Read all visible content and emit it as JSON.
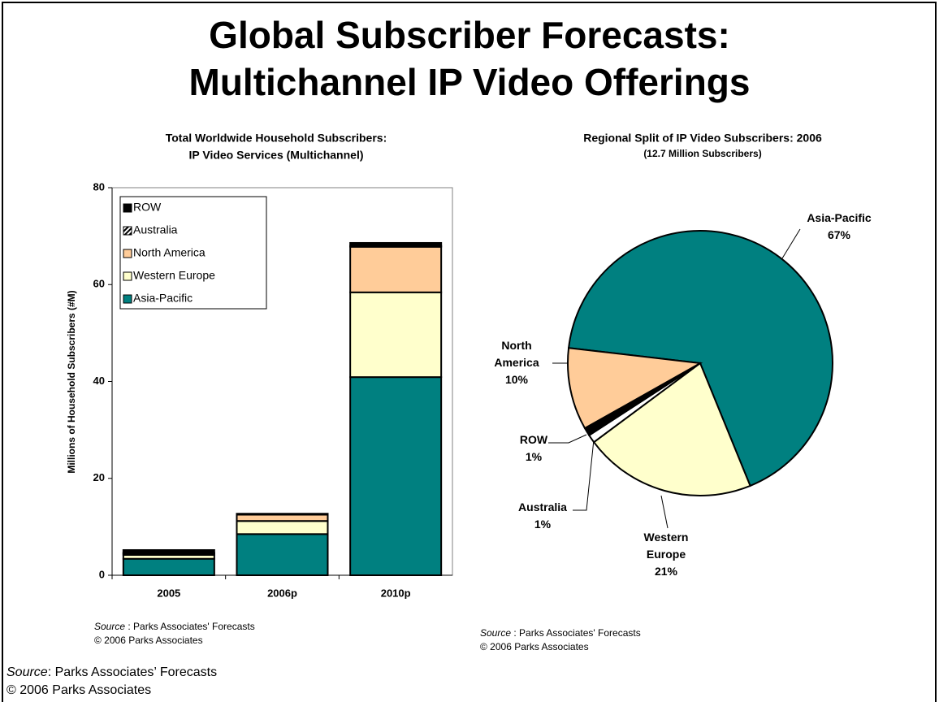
{
  "slide": {
    "title": [
      "Global Subscriber Forecasts:",
      "Multichannel IP Video Offerings"
    ],
    "source": {
      "label": "Source",
      "text": ": Parks Associates’ Forecasts",
      "copyright": "© 2006 Parks Associates"
    }
  },
  "chart_data": [
    {
      "type": "bar",
      "stacked": true,
      "title": [
        "Total Worldwide Household Subscribers:",
        "IP Video Services (Multichannel)"
      ],
      "y_label": "Millions of Household Subscribers (#M)",
      "categories": [
        "2005",
        "2006p",
        "2010p"
      ],
      "series": [
        {
          "name": "Asia-Pacific",
          "color": "#008080",
          "values": [
            3.4,
            8.5,
            40.9
          ]
        },
        {
          "name": "Western Europe",
          "color": "#FFFFCC",
          "values": [
            0.8,
            2.7,
            17.5
          ]
        },
        {
          "name": "North America",
          "color": "#FFCC99",
          "values": [
            0.3,
            1.3,
            9.4
          ]
        },
        {
          "name": "Australia",
          "color": "#000000",
          "pattern": "hatch",
          "values": [
            0.1,
            0.1,
            0.2
          ]
        },
        {
          "name": "ROW",
          "color": "#000000",
          "values": [
            0.6,
            0.1,
            0.6
          ]
        }
      ],
      "ylim": [
        0,
        80
      ],
      "yticks": [
        0,
        20,
        40,
        60,
        80
      ],
      "legend": "upper left",
      "source": {
        "label": "Source",
        "text": " :  Parks Associates' Forecasts",
        "copyright": "© 2006 Parks Associates"
      }
    },
    {
      "type": "pie",
      "title": "Regional Split of IP Video Subscribers: 2006",
      "subtitle": "(12.7 Million Subscribers)",
      "categories": [
        "Asia-Pacific",
        "Western Europe",
        "Australia",
        "ROW",
        "North America"
      ],
      "values": [
        67,
        21,
        1,
        1,
        10
      ],
      "value_labels": [
        "67%",
        "21%",
        "1%",
        "1%",
        "10%"
      ],
      "colors": [
        "#008080",
        "#FFFFCC",
        "#FFFFFF",
        "#000000",
        "#FFCC99"
      ],
      "source": {
        "label": "Source",
        "text": " :  Parks Associates' Forecasts",
        "copyright": "© 2006 Parks Associates"
      }
    }
  ]
}
